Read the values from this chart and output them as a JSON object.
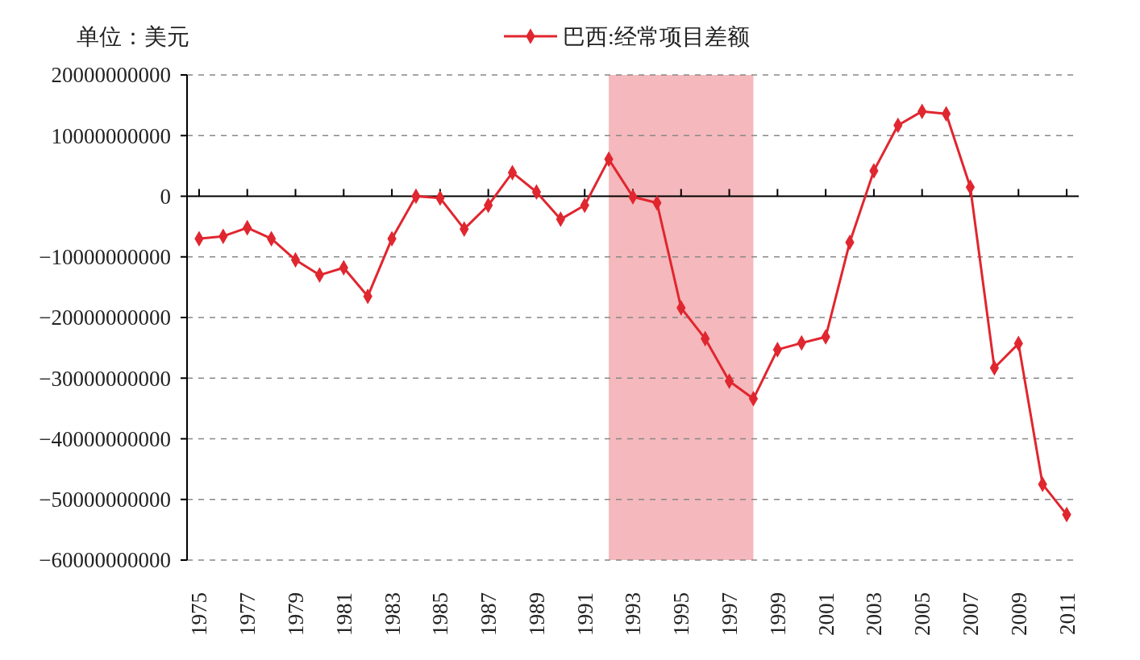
{
  "chart_data": {
    "type": "line",
    "x": [
      1975,
      1976,
      1977,
      1978,
      1979,
      1980,
      1981,
      1982,
      1983,
      1984,
      1985,
      1986,
      1987,
      1988,
      1989,
      1990,
      1991,
      1992,
      1993,
      1994,
      1995,
      1996,
      1997,
      1998,
      1999,
      2000,
      2001,
      2002,
      2003,
      2004,
      2005,
      2006,
      2007,
      2008,
      2009,
      2010,
      2011
    ],
    "xlim": [
      1974.5,
      2011.5
    ],
    "xticks": [
      1975,
      1977,
      1979,
      1981,
      1983,
      1985,
      1987,
      1989,
      1991,
      1993,
      1995,
      1997,
      1999,
      2001,
      2003,
      2005,
      2007,
      2009,
      2011
    ],
    "series": [
      {
        "name": "巴西:经常项目差额",
        "color": "#e0262f",
        "values": [
          -7000000000,
          -6600000000,
          -5200000000,
          -7000000000,
          -10500000000,
          -13000000000,
          -11800000000,
          -16500000000,
          -7000000000,
          0,
          -300000000,
          -5400000000,
          -1500000000,
          3900000000,
          700000000,
          -3800000000,
          -1500000000,
          6100000000,
          -100000000,
          -1100000000,
          -18400000000,
          -23500000000,
          -30500000000,
          -33400000000,
          -25300000000,
          -24200000000,
          -23200000000,
          -7600000000,
          4200000000,
          11700000000,
          14000000000,
          13600000000,
          1500000000,
          -28300000000,
          -24300000000,
          -47500000000,
          -52500000000
        ]
      }
    ],
    "ylim": [
      -60000000000,
      20000000000
    ],
    "yticks": [
      20000000000,
      10000000000,
      0,
      {
        "value": -10000000000,
        "label": "−10000000000"
      },
      {
        "value": -20000000000,
        "label": "−20000000000"
      },
      {
        "value": -30000000000,
        "label": "−30000000000"
      },
      {
        "value": -40000000000,
        "label": "−40000000000"
      },
      {
        "value": -50000000000,
        "label": "−50000000000"
      },
      {
        "value": -60000000000,
        "label": "−60000000000"
      }
    ],
    "grid": "y",
    "legend": "top",
    "marker": "diamond",
    "line_style": "solid",
    "bands": [
      {
        "axis": "x",
        "from": 1992,
        "to": 1998,
        "color": "#f4b0b5"
      }
    ],
    "annotations": [
      "单位：美元"
    ]
  }
}
